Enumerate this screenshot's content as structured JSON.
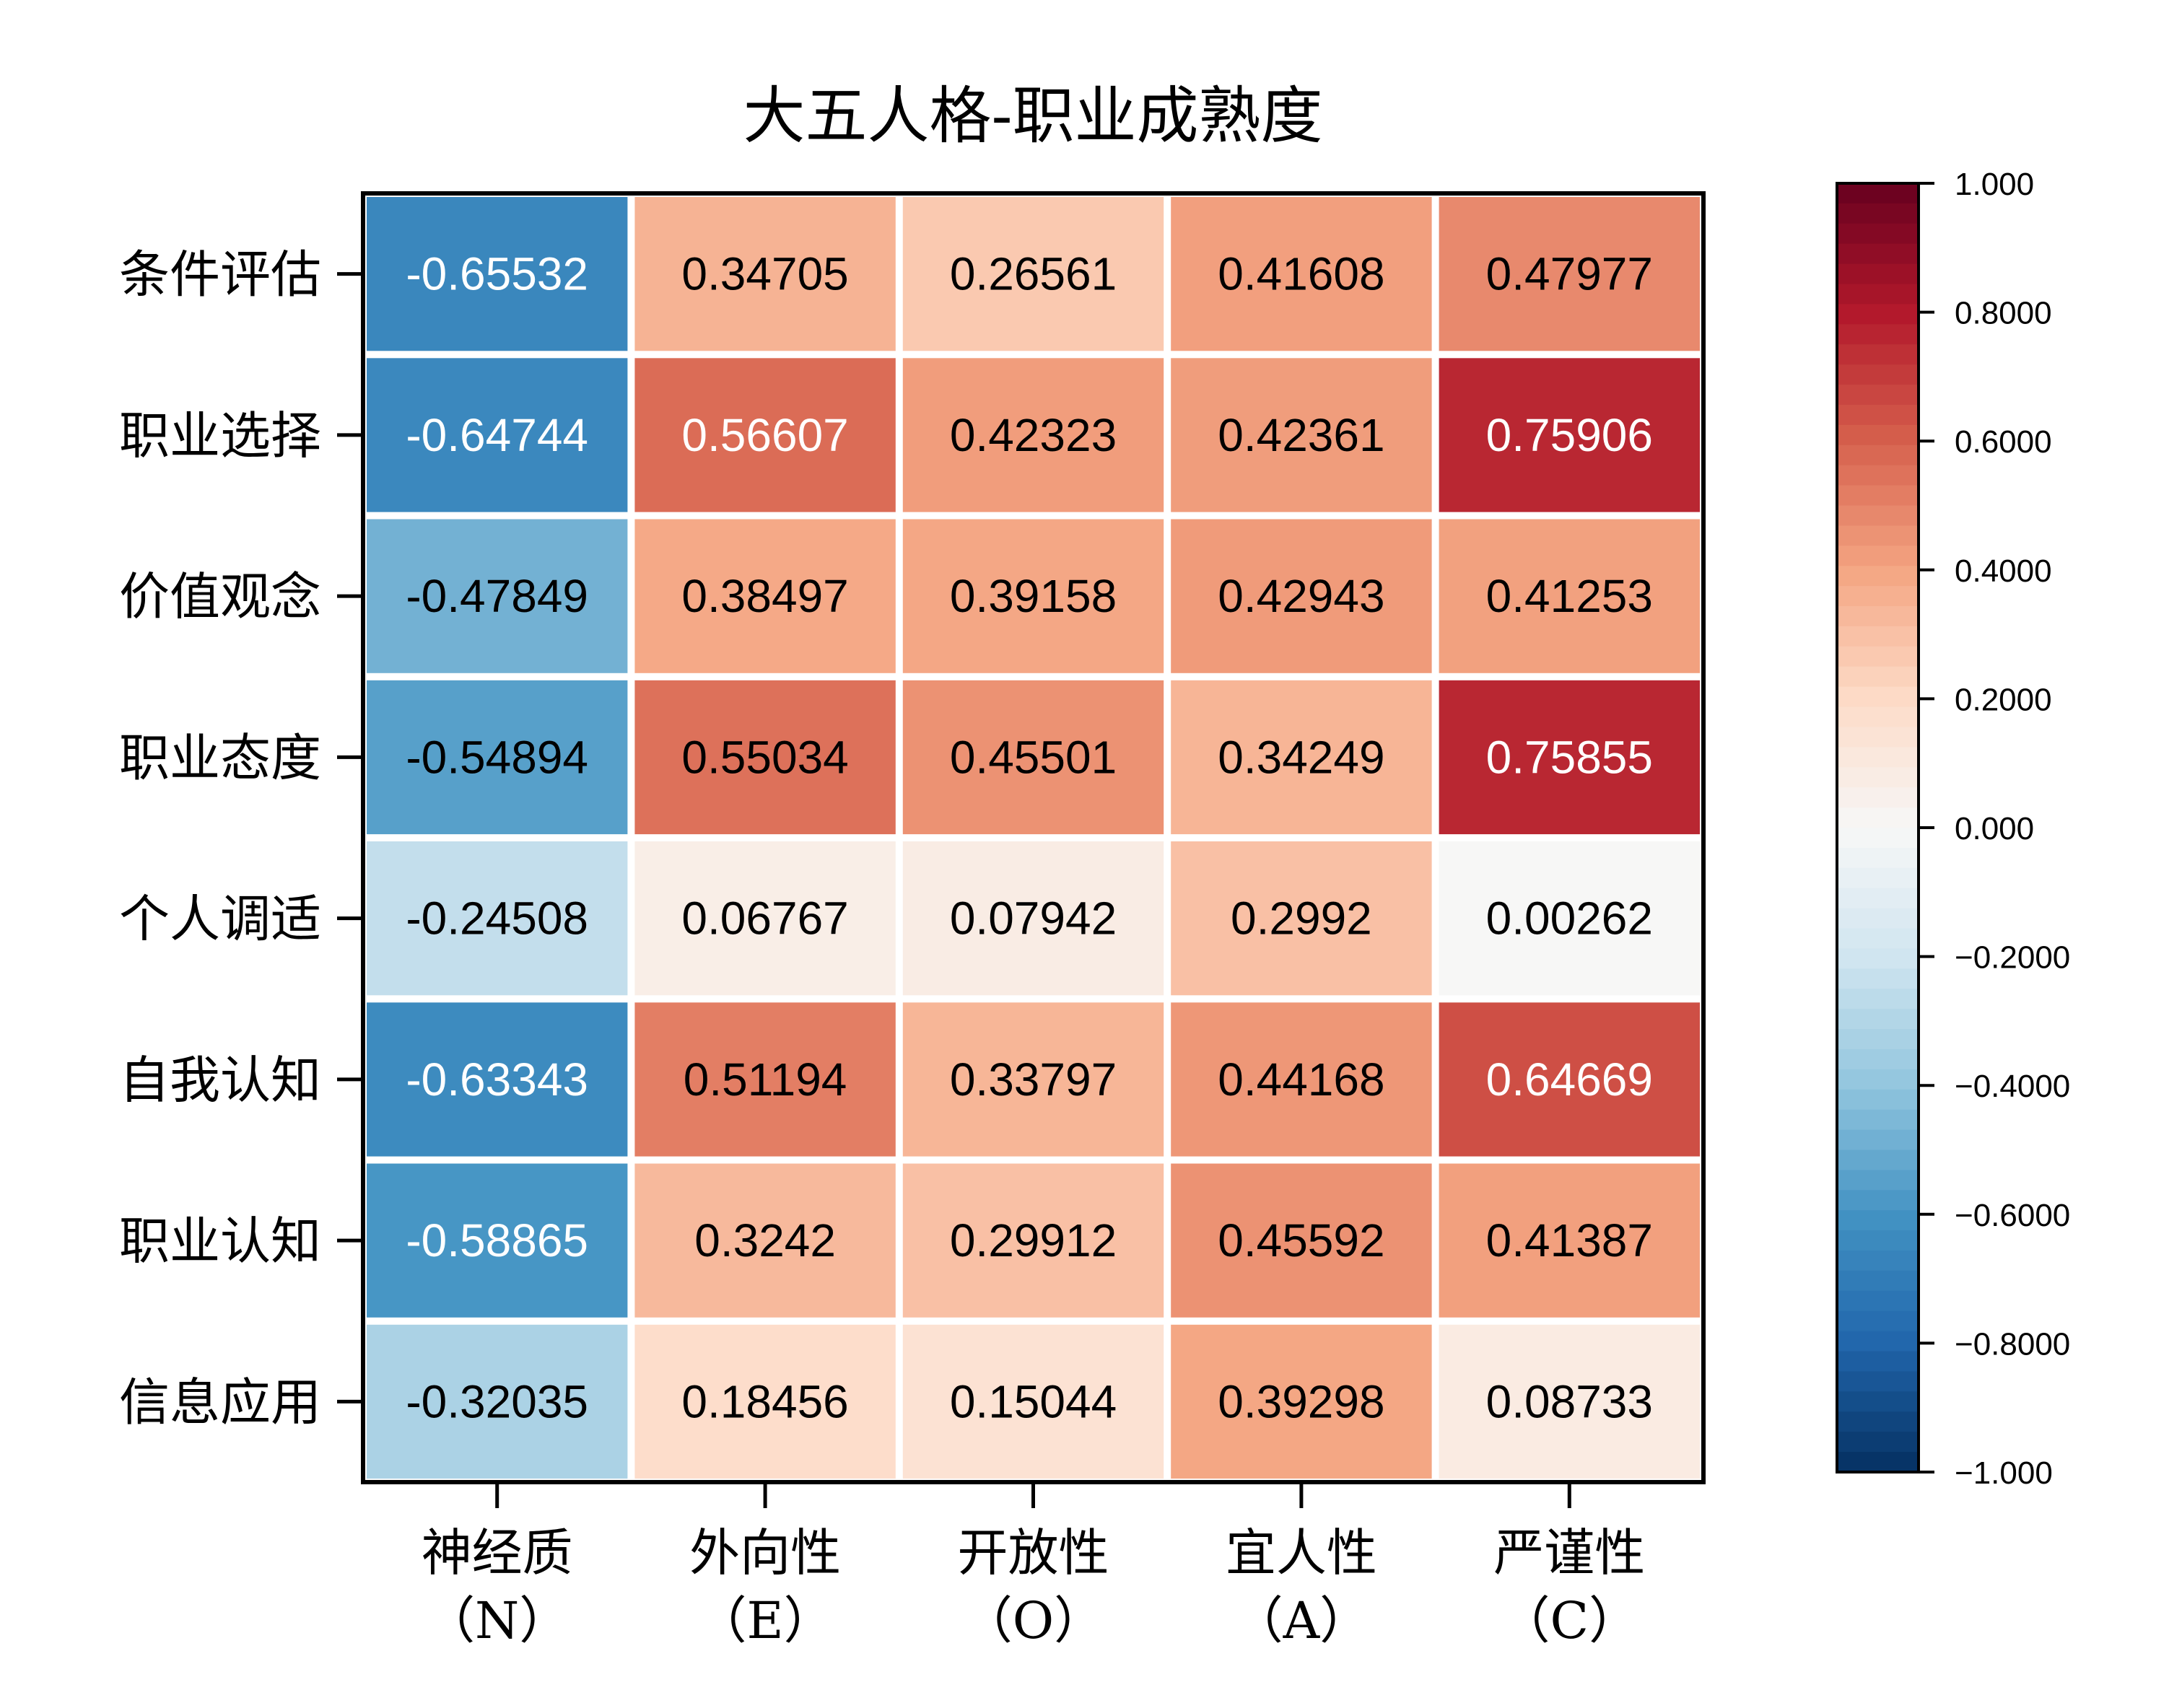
{
  "chart_data": {
    "type": "heatmap",
    "title": "大五人格-职业成熟度",
    "rows": [
      "条件评估",
      "职业选择",
      "价值观念",
      "职业态度",
      "个人调适",
      "自我认知",
      "职业认知",
      "信息应用"
    ],
    "columns": [
      {
        "name": "神经质",
        "abbr": "（N）"
      },
      {
        "name": "外向性",
        "abbr": "（E）"
      },
      {
        "name": "开放性",
        "abbr": "（O）"
      },
      {
        "name": "宜人性",
        "abbr": "（A）"
      },
      {
        "name": "严谨性",
        "abbr": "（C）"
      }
    ],
    "values": [
      [
        "-0.65532",
        "0.34705",
        "0.26561",
        "0.41608",
        "0.47977"
      ],
      [
        "-0.64744",
        "0.56607",
        "0.42323",
        "0.42361",
        "0.75906"
      ],
      [
        "-0.47849",
        "0.38497",
        "0.39158",
        "0.42943",
        "0.41253"
      ],
      [
        "-0.54894",
        "0.55034",
        "0.45501",
        "0.34249",
        "0.75855"
      ],
      [
        "-0.24508",
        "0.06767",
        "0.07942",
        "0.2992",
        "0.00262"
      ],
      [
        "-0.63343",
        "0.51194",
        "0.33797",
        "0.44168",
        "0.64669"
      ],
      [
        "-0.58865",
        "0.3242",
        "0.29912",
        "0.45592",
        "0.41387"
      ],
      [
        "-0.32035",
        "0.18456",
        "0.15044",
        "0.39298",
        "0.08733"
      ]
    ],
    "colorbar": {
      "range": [
        -1,
        1
      ],
      "colormap": "RdBu_r",
      "ticks": [
        {
          "value": 1,
          "label": "1.000"
        },
        {
          "value": 0.8,
          "label": "0.8000"
        },
        {
          "value": 0.6,
          "label": "0.6000"
        },
        {
          "value": 0.4,
          "label": "0.4000"
        },
        {
          "value": 0.2,
          "label": "0.2000"
        },
        {
          "value": 0,
          "label": "0.000"
        },
        {
          "value": -0.2,
          "label": "−0.2000"
        },
        {
          "value": -0.4,
          "label": "−0.4000"
        },
        {
          "value": -0.6,
          "label": "−0.6000"
        },
        {
          "value": -0.8,
          "label": "−0.8000"
        },
        {
          "value": -1,
          "label": "−1.000"
        }
      ]
    }
  }
}
